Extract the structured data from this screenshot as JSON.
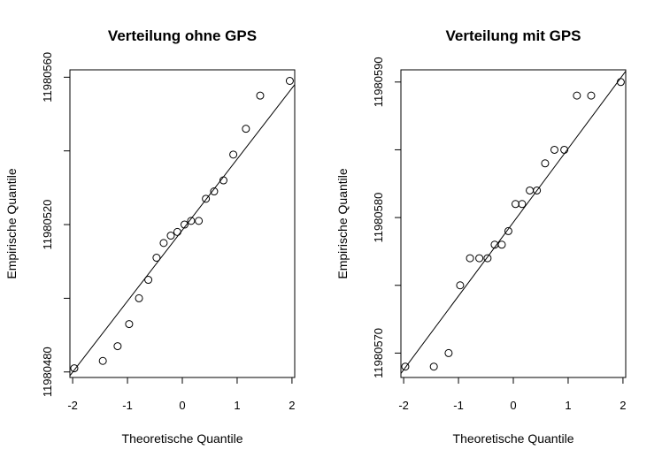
{
  "chart_data": [
    {
      "type": "scatter",
      "subtype": "qq-plot",
      "title": "Verteilung ohne GPS",
      "xlabel": "Theoretische Quantile",
      "ylabel": "Empirische Quantile",
      "xlim": [
        -2.05,
        2.05
      ],
      "ylim": [
        11980478.5,
        11980562
      ],
      "x_ticks": [
        "-2",
        "-1",
        "0",
        "1",
        "2"
      ],
      "x_tick_values": [
        -2,
        -1,
        0,
        1,
        2
      ],
      "y_ticks": [
        "11980480",
        "11980520",
        "11980560"
      ],
      "y_tick_values": [
        11980480,
        11980520,
        11980560
      ],
      "y_minor_ticks": [
        11980500,
        11980540
      ],
      "series": [
        {
          "marker": "open-circle",
          "x": [
            -1.97,
            -1.45,
            -1.18,
            -0.97,
            -0.79,
            -0.62,
            -0.47,
            -0.34,
            -0.21,
            -0.09,
            0.04,
            0.16,
            0.3,
            0.43,
            0.58,
            0.75,
            0.93,
            1.16,
            1.42,
            1.96
          ],
          "y": [
            11980481,
            11980483,
            11980487,
            11980493,
            11980500,
            11980505,
            11980511,
            11980515,
            11980517,
            11980518,
            11980520,
            11980521,
            11980521,
            11980527,
            11980529,
            11980532,
            11980539,
            11980546,
            11980555,
            11980559
          ]
        }
      ],
      "reference_line": {
        "x": [
          -2.05,
          2.05
        ],
        "y": [
          11980479,
          11980558
        ]
      }
    },
    {
      "type": "scatter",
      "subtype": "qq-plot",
      "title": "Verteilung mit GPS",
      "xlabel": "Theoretische Quantile",
      "ylabel": "Empirische Quantile",
      "xlim": [
        -2.05,
        2.05
      ],
      "ylim": [
        11980568.2,
        11980590.9
      ],
      "x_ticks": [
        "-2",
        "-1",
        "0",
        "1",
        "2"
      ],
      "x_tick_values": [
        -2,
        -1,
        0,
        1,
        2
      ],
      "y_ticks": [
        "11980570",
        "11980580",
        "11980590"
      ],
      "y_tick_values": [
        11980570,
        11980580,
        11980590
      ],
      "y_minor_ticks": [
        11980575,
        11980585
      ],
      "series": [
        {
          "marker": "open-circle",
          "x": [
            -1.97,
            -1.45,
            -1.18,
            -0.97,
            -0.79,
            -0.62,
            -0.47,
            -0.34,
            -0.21,
            -0.09,
            0.04,
            0.16,
            0.3,
            0.43,
            0.58,
            0.75,
            0.93,
            1.16,
            1.42,
            1.96
          ],
          "y": [
            11980569,
            11980569,
            11980570,
            11980575,
            11980577,
            11980577,
            11980577,
            11980578,
            11980578,
            11980579,
            11980581,
            11980581,
            11980582,
            11980582,
            11980584,
            11980585,
            11980585,
            11980589,
            11980589,
            11980590
          ]
        }
      ],
      "reference_line": {
        "x": [
          -2.05,
          2.05
        ],
        "y": [
          11980568.5,
          11980590.8
        ]
      }
    }
  ]
}
